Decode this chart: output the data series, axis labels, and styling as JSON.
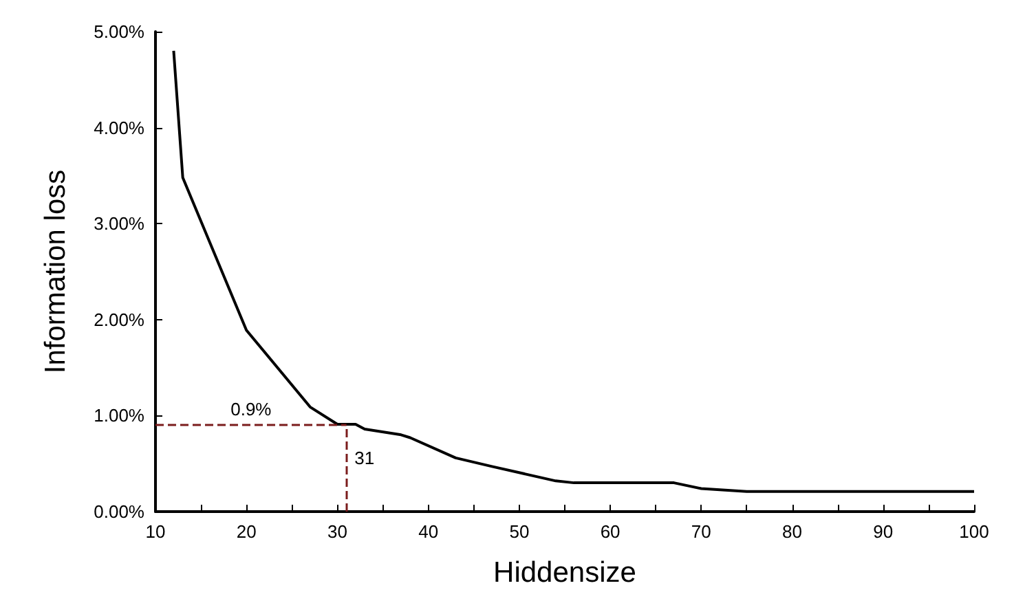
{
  "chart_data": {
    "type": "line",
    "xlabel": "Hiddensize",
    "ylabel": "Information loss",
    "x": [
      12,
      13,
      20,
      27,
      30,
      32,
      33,
      37,
      38,
      43,
      47,
      54,
      56,
      67,
      70,
      75,
      100
    ],
    "series": [
      {
        "color": "#000000",
        "values": [
          4.8,
          3.48,
          1.89,
          1.09,
          0.91,
          0.91,
          0.86,
          0.8,
          0.77,
          0.56,
          0.47,
          0.32,
          0.3,
          0.3,
          0.24,
          0.21,
          0.21
        ]
      }
    ],
    "xlim": [
      10,
      100
    ],
    "ylim": [
      0,
      5
    ],
    "xticks": [
      10,
      {
        "value": 15,
        "label": null
      },
      20,
      {
        "value": 25,
        "label": null
      },
      30,
      {
        "value": 35,
        "label": null
      },
      40,
      {
        "value": 45,
        "label": null
      },
      50,
      {
        "value": 55,
        "label": null
      },
      60,
      {
        "value": 65,
        "label": null
      },
      70,
      {
        "value": 75,
        "label": null
      },
      80,
      {
        "value": 85,
        "label": null
      },
      90,
      {
        "value": 95,
        "label": null
      },
      100
    ],
    "yticks": [
      {
        "value": 0,
        "label": "0.00%"
      },
      {
        "value": 1,
        "label": "1.00%"
      },
      {
        "value": 2,
        "label": "2.00%"
      },
      {
        "value": 3,
        "label": "3.00%"
      },
      {
        "value": 4,
        "label": "4.00%"
      },
      {
        "value": 5,
        "label": "5.00%"
      }
    ],
    "ref_lines": [
      {
        "axis": "y",
        "value": 0.9,
        "label": "0.9%",
        "color": "#7b1c1c",
        "line_style": "dashed"
      },
      {
        "axis": "x",
        "value": 31,
        "label": "31",
        "color": "#7b1c1c",
        "line_style": "dashed"
      }
    ],
    "grid": false,
    "marker": "none",
    "line_style": "solid"
  }
}
